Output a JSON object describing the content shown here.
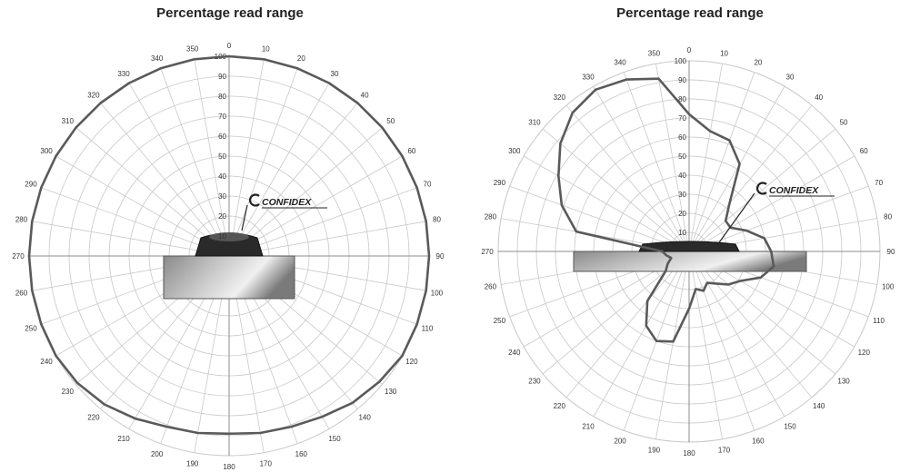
{
  "colors": {
    "grid": "#c8c8c8",
    "axis": "#8c8c8c",
    "series": "#5a5a5a"
  },
  "logo": {
    "text": "CONFIDEX"
  },
  "chart_data": [
    {
      "type": "polar-line",
      "title": "Percentage read range",
      "angle_ticks": [
        "0",
        "10",
        "20",
        "30",
        "40",
        "50",
        "60",
        "70",
        "80",
        "90",
        "100",
        "110",
        "120",
        "130",
        "140",
        "150",
        "160",
        "170",
        "180",
        "190",
        "200",
        "210",
        "220",
        "230",
        "240",
        "250",
        "260",
        "270",
        "280",
        "290",
        "300",
        "310",
        "320",
        "330",
        "340",
        "350"
      ],
      "radial_ticks": [
        "10",
        "20",
        "30",
        "40",
        "50",
        "60",
        "70",
        "80",
        "90",
        "100"
      ],
      "rlim": [
        0,
        100
      ],
      "series": [
        {
          "angles": [
            0,
            10,
            20,
            30,
            40,
            50,
            60,
            70,
            80,
            90,
            100,
            110,
            120,
            130,
            140,
            150,
            160,
            170,
            180,
            190,
            200,
            210,
            220,
            230,
            240,
            250,
            260,
            270,
            280,
            290,
            300,
            310,
            320,
            330,
            340,
            350
          ],
          "values": [
            100,
            100,
            100,
            100,
            100,
            100,
            100,
            100,
            100,
            100,
            100,
            100,
            100,
            98,
            96,
            93,
            91,
            90,
            89,
            90,
            91,
            94,
            97,
            99,
            100,
            100,
            100,
            100,
            100,
            100,
            100,
            100,
            100,
            100,
            100,
            100
          ]
        }
      ]
    },
    {
      "type": "polar-line",
      "title": "Percentage read range",
      "angle_ticks": [
        "0",
        "10",
        "20",
        "30",
        "40",
        "50",
        "60",
        "70",
        "80",
        "90",
        "100",
        "110",
        "120",
        "130",
        "140",
        "150",
        "160",
        "170",
        "180",
        "190",
        "200",
        "210",
        "220",
        "230",
        "240",
        "250",
        "260",
        "270",
        "280",
        "290",
        "300",
        "310",
        "320",
        "330",
        "340",
        "350"
      ],
      "radial_ticks": [
        "10",
        "20",
        "30",
        "40",
        "50",
        "60",
        "70",
        "80",
        "90",
        "100"
      ],
      "rlim": [
        0,
        100
      ],
      "series": [
        {
          "angles": [
            0,
            10,
            20,
            30,
            40,
            50,
            60,
            70,
            80,
            90,
            100,
            110,
            120,
            130,
            140,
            150,
            160,
            170,
            180,
            190,
            200,
            210,
            220,
            230,
            240,
            250,
            260,
            270,
            280,
            290,
            300,
            310,
            320,
            330,
            340,
            350
          ],
          "values": [
            72,
            64,
            62,
            53,
            33,
            25,
            25,
            32,
            40,
            43,
            45,
            40,
            31,
            27,
            22,
            19,
            22,
            20,
            30,
            48,
            50,
            45,
            34,
            16,
            13,
            10,
            12,
            14,
            60,
            71,
            79,
            88,
            95,
            98,
            96,
            92
          ]
        }
      ]
    }
  ]
}
